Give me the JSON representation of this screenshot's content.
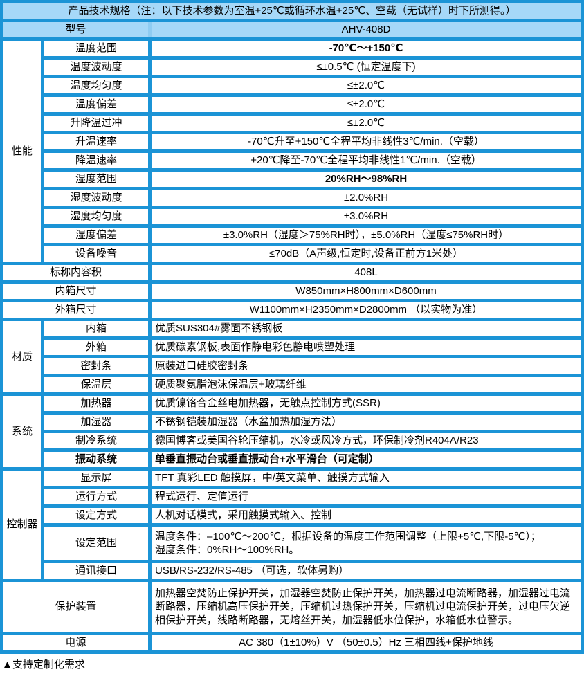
{
  "colors": {
    "grid_blue": "#1b94d6",
    "header_bg": "#a6d8f8",
    "header_gap": "#8fccf2",
    "cell_bg": "#ffffff",
    "text": "#000000"
  },
  "title": "产品技术规格（注：以下技术参数为室温+25℃或循环水温+25℃、空载（无试样）时下所测得。）",
  "model": {
    "label": "型号",
    "value": "AHV-408D"
  },
  "perf": {
    "section": "性能",
    "rows": [
      {
        "label": "温度范围",
        "value": "-70℃～+150℃"
      },
      {
        "label": "温度波动度",
        "value": "≤±0.5℃ (恒定温度下)"
      },
      {
        "label": "温度均匀度",
        "value": "≤±2.0℃"
      },
      {
        "label": "温度偏差",
        "value": "≤±2.0℃"
      },
      {
        "label": "升降温过冲",
        "value": "≤±2.0℃"
      },
      {
        "label": "升温速率",
        "value": "-70℃升至+150℃全程平均非线性3℃/min.（空载）"
      },
      {
        "label": "降温速率",
        "value": "+20℃降至-70℃全程平均非线性1℃/min.（空载）"
      },
      {
        "label": "湿度范围",
        "value": "20%RH～98%RH"
      },
      {
        "label": "湿度波动度",
        "value": "±2.0%RH"
      },
      {
        "label": "湿度均匀度",
        "value": "±3.0%RH"
      },
      {
        "label": "湿度偏差",
        "value": "±3.0%RH（湿度＞75%RH时），±5.0%RH（湿度≤75%RH时）"
      },
      {
        "label": "设备噪音",
        "value": "≤70dB（A声级,恒定时,设备正前方1米处）"
      }
    ]
  },
  "volume": {
    "label": "标称内容积",
    "value": "408L"
  },
  "inner_size": {
    "label": "内箱尺寸",
    "value": "W850mm×H800mm×D600mm"
  },
  "outer_size": {
    "label": "外箱尺寸",
    "value": "W1100mm×H2350mm×D2800mm （以实物为准）"
  },
  "material": {
    "section": "材质",
    "rows": [
      {
        "label": "内箱",
        "value": "优质SUS304#雾面不锈钢板"
      },
      {
        "label": "外箱",
        "value": "优质碳素钢板,表面作静电彩色静电喷塑处理"
      },
      {
        "label": "密封条",
        "value": "原装进口硅胶密封条"
      },
      {
        "label": "保温层",
        "value": "硬质聚氨脂泡沫保温层+玻璃纤维"
      }
    ]
  },
  "system": {
    "section": "系统",
    "rows": [
      {
        "label": "加热器",
        "value": "优质镍铬合金丝电加热器，无触点控制方式(SSR)"
      },
      {
        "label": "加湿器",
        "value": "不锈钢铠装加湿器（水盆加热加湿方法）"
      },
      {
        "label": "制冷系统",
        "value": "德国博客或美国谷轮压缩机，水冷或风冷方式，环保制冷剂R404A/R23"
      },
      {
        "label": "振动系统",
        "value": "单垂直振动台或垂直振动台+水平滑台（可定制）"
      }
    ]
  },
  "controller": {
    "section": "控制器",
    "rows": [
      {
        "label": "显示屏",
        "value": "TFT 真彩LED 触摸屏，中/英文菜单、触摸方式输入"
      },
      {
        "label": "运行方式",
        "value": "程式运行、定值运行"
      },
      {
        "label": "设定方式",
        "value": "人机对话模式，采用触摸式输入、控制"
      }
    ],
    "range": {
      "label": "设定范围",
      "line1": "温度条件：–100℃～200℃，根据设备的温度工作范围调整（上限+5℃,下限-5℃）；",
      "line2": "湿度条件：0%RH～100%RH。"
    },
    "comm": {
      "label": "通讯接口",
      "value": "USB/RS-232/RS-485 （可选，软体另购）"
    }
  },
  "protection": {
    "label": "保护装置",
    "value": "加热器空焚防止保护开关，加湿器空焚防止保护开关，加热器过电流断路器，加湿器过电流断路器，压缩机高压保护开关，压缩机过热保护开关，压缩机过电流保护开关，过电压欠逆相保护开关，线路断路器，无熔丝开关，加湿器低水位保护，水箱低水位警示。"
  },
  "power": {
    "label": "电源",
    "value": "AC 380（1±10%）V （50±0.5）Hz 三相四线+保护地线"
  },
  "footer_note": "▲支持定制化需求"
}
